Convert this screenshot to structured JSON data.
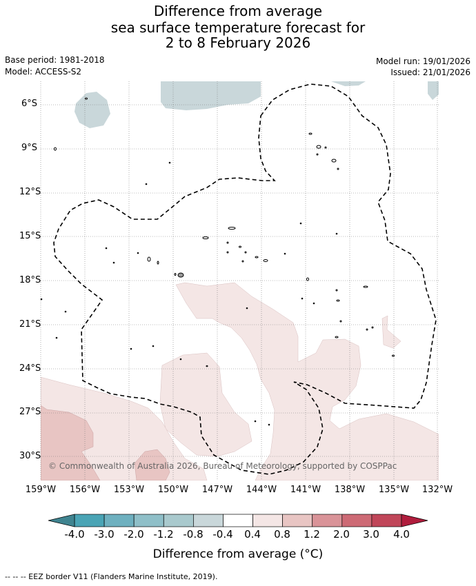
{
  "title": {
    "line1": "Difference from average",
    "line2": "sea surface temperature forecast for",
    "line3": "2 to 8 February 2026"
  },
  "meta": {
    "base_period": "Base period: 1981-2018",
    "model": "Model: ACCESS-S2",
    "model_run": "Model run: 19/01/2026",
    "issued": "Issued: 21/01/2026"
  },
  "map": {
    "lat_ticks": [
      "6°S",
      "9°S",
      "12°S",
      "15°S",
      "18°S",
      "21°S",
      "24°S",
      "27°S",
      "30°S"
    ],
    "lon_ticks": [
      "159°W",
      "156°W",
      "153°W",
      "150°W",
      "147°W",
      "144°W",
      "141°W",
      "138°W",
      "135°W",
      "132°W"
    ],
    "copyright": "© Commonwealth of Australia 2026, Bureau of Meteorology, supported by COSPPac"
  },
  "colorbar": {
    "labels": [
      "-4.0",
      "-3.0",
      "-2.0",
      "-1.2",
      "-0.8",
      "-0.4",
      "0.4",
      "0.8",
      "1.2",
      "2.0",
      "3.0",
      "4.0"
    ],
    "colors": [
      "#4aa4b5",
      "#6eb0bf",
      "#8fbfc8",
      "#a9c9cd",
      "#c9d7da",
      "#ffffff",
      "#f4e6e5",
      "#e8c5c3",
      "#d99398",
      "#cd6a75",
      "#c04659"
    ],
    "under_color": "#3f8490",
    "over_color": "#b01d3d",
    "title": "Difference from average (°C)"
  },
  "footnote": "--  --  -- EEZ border V11 (Flanders Marine Institute, 2019)."
}
